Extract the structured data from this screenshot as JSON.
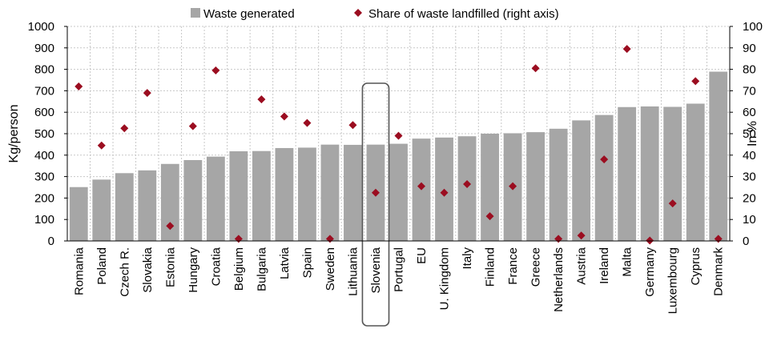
{
  "chart_data": {
    "type": "bar",
    "categories": [
      "Romania",
      "Poland",
      "Czech R.",
      "Slovakia",
      "Estonia",
      "Hungary",
      "Croatia",
      "Belgium",
      "Bulgaria",
      "Latvia",
      "Spain",
      "Sweden",
      "Lithuania",
      "Slovenia",
      "Portugal",
      "EU",
      "U. Kingdom",
      "Italy",
      "Finland",
      "France",
      "Greece",
      "Netherlands",
      "Austria",
      "Ireland",
      "Malta",
      "Germany",
      "Luxembourg",
      "Cyprus",
      "Denmark"
    ],
    "series": [
      {
        "name": "Waste generated",
        "type": "bar",
        "axis": "left",
        "color": "#a6a6a6",
        "values": [
          251,
          286,
          316,
          329,
          359,
          377,
          393,
          418,
          419,
          433,
          435,
          449,
          448,
          449,
          453,
          477,
          482,
          488,
          500,
          502,
          507,
          523,
          562,
          587,
          624,
          627,
          625,
          640,
          789
        ]
      },
      {
        "name": "Share of waste landfilled (right axis)",
        "type": "scatter",
        "axis": "right",
        "color": "#9b0d20",
        "values": [
          72,
          44.5,
          52.5,
          69,
          7,
          53.5,
          79.5,
          1,
          66,
          58,
          55,
          1,
          54,
          22.5,
          49,
          25.5,
          22.5,
          26.5,
          11.5,
          25.5,
          80.5,
          1,
          2.5,
          38,
          89.5,
          0.2,
          17.5,
          74.5,
          1
        ]
      }
    ],
    "ylabel": "Kg/person",
    "ylabel_right": "In %",
    "ylim": [
      0,
      1000
    ],
    "ylim_right": [
      0,
      100
    ],
    "yticks": [
      "0",
      "100",
      "200",
      "300",
      "400",
      "500",
      "600",
      "700",
      "800",
      "900",
      "1000"
    ],
    "yticks_right": [
      "0",
      "10",
      "20",
      "30",
      "40",
      "50",
      "60",
      "70",
      "80",
      "90",
      "100"
    ],
    "grid": true,
    "legend_position": "top",
    "highlight_category": "Slovenia"
  }
}
